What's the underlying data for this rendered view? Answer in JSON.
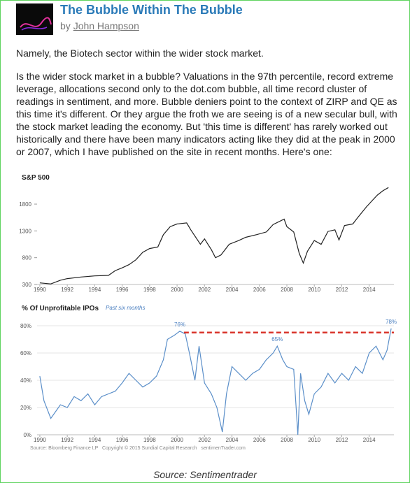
{
  "header": {
    "title": "The Bubble Within The Bubble",
    "byline": "by",
    "author": "John Hampson"
  },
  "paragraphs": [
    "Namely, the Biotech sector within the wider stock market.",
    "Is the wider stock market in a bubble? Valuations in the 97th percentile, record extreme leverage, allocations second only to the dot.com bubble, all time record cluster of readings in sentiment, and more. Bubble deniers point to the context of ZIRP and QE as this time it's different. Or they argue the froth we are seeing is of a new secular bull, with the stock market leading the economy. But 'this time is different' has rarely worked out historically and there have been many indicators acting like they did at the peak in 2000 or 2007, which I have published on the site in recent months. Here's one:"
  ],
  "figure": {
    "chart_data": [
      {
        "type": "line",
        "title": "S&P 500",
        "color": "#222222",
        "grid": false,
        "x": [
          1990,
          1990.8,
          1991.5,
          1992,
          1993,
          1994,
          1995,
          1995.5,
          1996,
          1996.5,
          1997,
          1997.5,
          1998,
          1998.6,
          1999,
          1999.5,
          2000,
          2000.7,
          2001,
          2001.7,
          2002,
          2002.5,
          2002.8,
          2003.2,
          2003.8,
          2004.5,
          2005,
          2005.8,
          2006.5,
          2007,
          2007.8,
          2008,
          2008.5,
          2008.9,
          2009.2,
          2009.5,
          2010,
          2010.5,
          2011,
          2011.5,
          2011.8,
          2012.2,
          2012.8,
          2013.2,
          2013.8,
          2014.2,
          2014.6,
          2015,
          2015.4
        ],
        "values": [
          330,
          310,
          380,
          410,
          440,
          460,
          470,
          560,
          610,
          670,
          760,
          900,
          970,
          1000,
          1230,
          1380,
          1430,
          1450,
          1320,
          1050,
          1150,
          950,
          800,
          850,
          1050,
          1120,
          1180,
          1230,
          1280,
          1420,
          1520,
          1380,
          1280,
          880,
          700,
          920,
          1120,
          1050,
          1290,
          1320,
          1130,
          1400,
          1430,
          1560,
          1750,
          1860,
          1970,
          2050,
          2110
        ],
        "xlim": [
          1989.8,
          2015.8
        ],
        "xticks": [
          1990,
          1992,
          1994,
          1996,
          1998,
          2000,
          2002,
          2004,
          2006,
          2008,
          2010,
          2012,
          2014
        ],
        "ylim": [
          300,
          2150
        ],
        "yticks": [
          300,
          800,
          1300,
          1800
        ]
      },
      {
        "type": "line",
        "title": "% Of Unprofitable IPOs",
        "subtitle": "Past six months",
        "color": "#5b8fc9",
        "grid": true,
        "x": [
          1990,
          1990.3,
          1990.8,
          1991.5,
          1992,
          1992.5,
          1993,
          1993.5,
          1994,
          1994.5,
          1995,
          1995.5,
          1996,
          1996.5,
          1997,
          1997.5,
          1998,
          1998.5,
          1999,
          1999.3,
          1999.8,
          2000.2,
          2000.6,
          2000.9,
          2001.3,
          2001.6,
          2002,
          2002.5,
          2002.9,
          2003.3,
          2003.6,
          2004,
          2004.5,
          2005,
          2005.5,
          2006,
          2006.5,
          2007,
          2007.3,
          2007.7,
          2008,
          2008.5,
          2008.8,
          2009,
          2009.3,
          2009.6,
          2010,
          2010.5,
          2011,
          2011.5,
          2012,
          2012.5,
          2013,
          2013.5,
          2014,
          2014.5,
          2015,
          2015.3,
          2015.6
        ],
        "values": [
          43,
          25,
          12,
          22,
          20,
          28,
          25,
          30,
          22,
          28,
          30,
          32,
          38,
          45,
          40,
          35,
          38,
          43,
          55,
          70,
          73,
          76,
          74,
          60,
          40,
          65,
          38,
          30,
          20,
          2,
          30,
          50,
          45,
          40,
          45,
          48,
          55,
          60,
          65,
          55,
          50,
          48,
          0,
          45,
          25,
          15,
          30,
          35,
          45,
          38,
          45,
          40,
          50,
          45,
          60,
          65,
          55,
          62,
          78
        ],
        "xlim": [
          1989.8,
          2015.8
        ],
        "xticks": [
          1990,
          1992,
          1994,
          1996,
          1998,
          2000,
          2002,
          2004,
          2006,
          2008,
          2010,
          2012,
          2014
        ],
        "ylim": [
          0,
          85
        ],
        "yticks": [
          {
            "value": 0,
            "label": "0%"
          },
          {
            "value": 20,
            "label": "20%"
          },
          {
            "value": 40,
            "label": "40%"
          },
          {
            "value": 60,
            "label": "60%"
          },
          {
            "value": 80,
            "label": "80%"
          }
        ],
        "reference_line": {
          "value": 75,
          "from": 2000.5,
          "to": 2015.8,
          "color": "#d9342b"
        },
        "annotations": [
          {
            "label": "76%",
            "x": 2000.2,
            "y": 76
          },
          {
            "label": "65%",
            "x": 2007.3,
            "y": 65
          },
          {
            "label": "78%",
            "x": 2015.6,
            "y": 78
          }
        ]
      }
    ],
    "source_note": "Source: Bloomberg Finance LP   Copyright © 2015 Sundial Capital Research   sentimenTrader.com"
  },
  "caption": "Source: Sentimentrader"
}
